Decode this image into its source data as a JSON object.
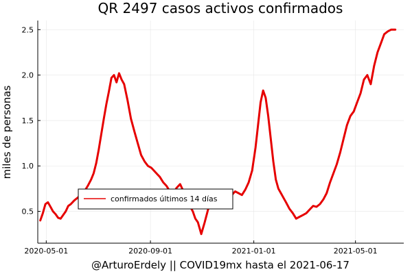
{
  "chart_data": {
    "type": "line",
    "title": "QR   2497 casos activos confirmados",
    "xlabel": "@ArturoErdely || COVID19mx hasta el 2021-06-17",
    "ylabel": "miles de personas",
    "x_range": [
      "2020-04-21",
      "2021-06-27"
    ],
    "ylim": [
      0.15,
      2.6
    ],
    "grid": true,
    "legend_position": "bottom-left",
    "x_ticks": [
      "2020-05-01",
      "2020-09-01",
      "2021-01-01",
      "2021-05-01"
    ],
    "y_ticks": [
      0.5,
      1.0,
      1.5,
      2.0,
      2.5
    ],
    "y_tick_labels": [
      "0.5",
      "1.0",
      "1.5",
      "2.0",
      "2.5"
    ],
    "series": [
      {
        "name": "confirmados últimos 14 días",
        "color": "#e60000",
        "x": [
          "2020-04-24",
          "2020-04-27",
          "2020-04-30",
          "2020-05-03",
          "2020-05-06",
          "2020-05-09",
          "2020-05-12",
          "2020-05-15",
          "2020-05-18",
          "2020-05-21",
          "2020-05-24",
          "2020-05-27",
          "2020-05-30",
          "2020-06-03",
          "2020-06-07",
          "2020-06-11",
          "2020-06-15",
          "2020-06-19",
          "2020-06-23",
          "2020-06-26",
          "2020-06-29",
          "2020-07-02",
          "2020-07-05",
          "2020-07-08",
          "2020-07-11",
          "2020-07-14",
          "2020-07-17",
          "2020-07-20",
          "2020-07-23",
          "2020-07-26",
          "2020-07-29",
          "2020-08-01",
          "2020-08-05",
          "2020-08-09",
          "2020-08-13",
          "2020-08-17",
          "2020-08-21",
          "2020-08-25",
          "2020-08-29",
          "2020-09-02",
          "2020-09-05",
          "2020-09-08",
          "2020-09-12",
          "2020-09-16",
          "2020-09-20",
          "2020-09-24",
          "2020-09-28",
          "2020-10-02",
          "2020-10-06",
          "2020-10-10",
          "2020-10-14",
          "2020-10-18",
          "2020-10-21",
          "2020-10-24",
          "2020-10-27",
          "2020-10-31",
          "2020-11-04",
          "2020-11-08",
          "2020-11-12",
          "2020-11-16",
          "2020-11-20",
          "2020-11-24",
          "2020-11-28",
          "2020-12-02",
          "2020-12-06",
          "2020-12-10",
          "2020-12-14",
          "2020-12-18",
          "2020-12-22",
          "2020-12-26",
          "2020-12-30",
          "2021-01-03",
          "2021-01-06",
          "2021-01-09",
          "2021-01-12",
          "2021-01-15",
          "2021-01-18",
          "2021-01-21",
          "2021-01-24",
          "2021-01-27",
          "2021-01-30",
          "2021-02-02",
          "2021-02-05",
          "2021-02-08",
          "2021-02-12",
          "2021-02-16",
          "2021-02-20",
          "2021-02-24",
          "2021-02-28",
          "2021-03-04",
          "2021-03-08",
          "2021-03-12",
          "2021-03-16",
          "2021-03-20",
          "2021-03-24",
          "2021-03-28",
          "2021-04-01",
          "2021-04-05",
          "2021-04-09",
          "2021-04-13",
          "2021-04-17",
          "2021-04-21",
          "2021-04-25",
          "2021-04-29",
          "2021-05-03",
          "2021-05-07",
          "2021-05-11",
          "2021-05-15",
          "2021-05-19",
          "2021-05-23",
          "2021-05-27",
          "2021-05-31",
          "2021-06-04",
          "2021-06-08",
          "2021-06-12",
          "2021-06-17"
        ],
        "y": [
          0.4,
          0.48,
          0.58,
          0.6,
          0.55,
          0.5,
          0.47,
          0.43,
          0.42,
          0.46,
          0.5,
          0.56,
          0.58,
          0.62,
          0.65,
          0.68,
          0.72,
          0.78,
          0.85,
          0.92,
          1.03,
          1.18,
          1.35,
          1.52,
          1.68,
          1.82,
          1.97,
          2.0,
          1.92,
          2.02,
          1.95,
          1.9,
          1.72,
          1.52,
          1.38,
          1.25,
          1.12,
          1.05,
          1.0,
          0.98,
          0.95,
          0.92,
          0.88,
          0.82,
          0.78,
          0.72,
          0.7,
          0.76,
          0.8,
          0.72,
          0.62,
          0.55,
          0.5,
          0.42,
          0.38,
          0.25,
          0.38,
          0.52,
          0.63,
          0.7,
          0.7,
          0.66,
          0.62,
          0.65,
          0.68,
          0.72,
          0.7,
          0.68,
          0.74,
          0.82,
          0.95,
          1.2,
          1.45,
          1.7,
          1.83,
          1.75,
          1.55,
          1.3,
          1.05,
          0.85,
          0.75,
          0.7,
          0.65,
          0.6,
          0.53,
          0.48,
          0.42,
          0.44,
          0.46,
          0.48,
          0.52,
          0.56,
          0.55,
          0.58,
          0.63,
          0.7,
          0.82,
          0.92,
          1.02,
          1.15,
          1.3,
          1.45,
          1.55,
          1.6,
          1.7,
          1.8,
          1.95,
          2.0,
          1.9,
          2.1,
          2.25,
          2.35,
          2.45,
          2.48,
          2.5,
          2.5
        ]
      }
    ]
  }
}
